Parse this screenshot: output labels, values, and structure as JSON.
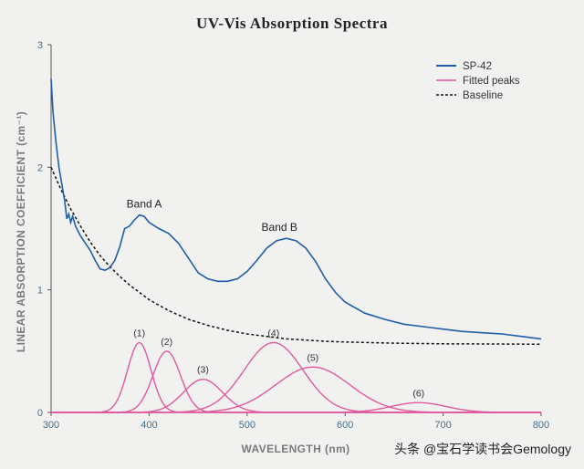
{
  "chart_data": {
    "type": "line",
    "title": "UV-Vis Absorption Spectra",
    "xlabel": "WAVELENGTH (nm)",
    "ylabel": "LINEAR ABSORPTION COEFFICIENT (cm⁻¹)",
    "xlim": [
      300,
      800
    ],
    "ylim": [
      0,
      3
    ],
    "xticks": [
      300,
      400,
      500,
      600,
      700,
      800
    ],
    "yticks": [
      0,
      1,
      2,
      3
    ],
    "grid": false,
    "legend_position": "top-right",
    "series": [
      {
        "name": "SP-42",
        "color": "#1f5fa8",
        "style": "solid",
        "x": [
          300,
          302,
          305,
          308,
          311,
          314,
          316,
          318,
          320,
          322,
          325,
          330,
          335,
          340,
          345,
          350,
          355,
          360,
          365,
          370,
          375,
          380,
          385,
          390,
          395,
          400,
          410,
          420,
          430,
          440,
          450,
          460,
          470,
          480,
          490,
          500,
          510,
          520,
          530,
          540,
          550,
          560,
          570,
          580,
          590,
          600,
          620,
          640,
          660,
          680,
          700,
          720,
          740,
          760,
          780,
          800
        ],
        "y": [
          2.72,
          2.45,
          2.2,
          2.0,
          1.86,
          1.72,
          1.58,
          1.62,
          1.55,
          1.6,
          1.52,
          1.44,
          1.38,
          1.32,
          1.24,
          1.17,
          1.16,
          1.18,
          1.24,
          1.35,
          1.5,
          1.52,
          1.57,
          1.61,
          1.6,
          1.55,
          1.5,
          1.46,
          1.38,
          1.26,
          1.14,
          1.09,
          1.07,
          1.07,
          1.09,
          1.15,
          1.24,
          1.34,
          1.4,
          1.42,
          1.4,
          1.34,
          1.23,
          1.09,
          0.98,
          0.9,
          0.81,
          0.76,
          0.72,
          0.7,
          0.68,
          0.66,
          0.65,
          0.64,
          0.62,
          0.6
        ]
      },
      {
        "name": "Fitted peaks",
        "color": "#e05aa0",
        "style": "solid",
        "peaks": [
          {
            "label": "(1)",
            "center": 390,
            "height": 0.57,
            "width": 12
          },
          {
            "label": "(2)",
            "center": 418,
            "height": 0.5,
            "width": 14
          },
          {
            "label": "(3)",
            "center": 455,
            "height": 0.27,
            "width": 20
          },
          {
            "label": "(4)",
            "center": 527,
            "height": 0.57,
            "width": 30
          },
          {
            "label": "(5)",
            "center": 567,
            "height": 0.37,
            "width": 38
          },
          {
            "label": "(6)",
            "center": 675,
            "height": 0.08,
            "width": 28
          }
        ]
      },
      {
        "name": "Baseline",
        "color": "#111111",
        "style": "dashed",
        "x": [
          300,
          310,
          320,
          330,
          340,
          350,
          360,
          370,
          380,
          390,
          400,
          420,
          440,
          460,
          480,
          500,
          520,
          540,
          560,
          580,
          600,
          650,
          700,
          750,
          800
        ],
        "y": [
          2.0,
          1.82,
          1.66,
          1.52,
          1.39,
          1.28,
          1.19,
          1.11,
          1.04,
          0.98,
          0.92,
          0.83,
          0.76,
          0.71,
          0.67,
          0.64,
          0.62,
          0.6,
          0.59,
          0.58,
          0.575,
          0.565,
          0.56,
          0.558,
          0.556
        ]
      }
    ],
    "annotations": [
      {
        "text": "Band A",
        "x": 395,
        "y": 1.67
      },
      {
        "text": "Band B",
        "x": 533,
        "y": 1.48
      }
    ]
  },
  "watermark": "头条 @宝石学读书会Gemology"
}
